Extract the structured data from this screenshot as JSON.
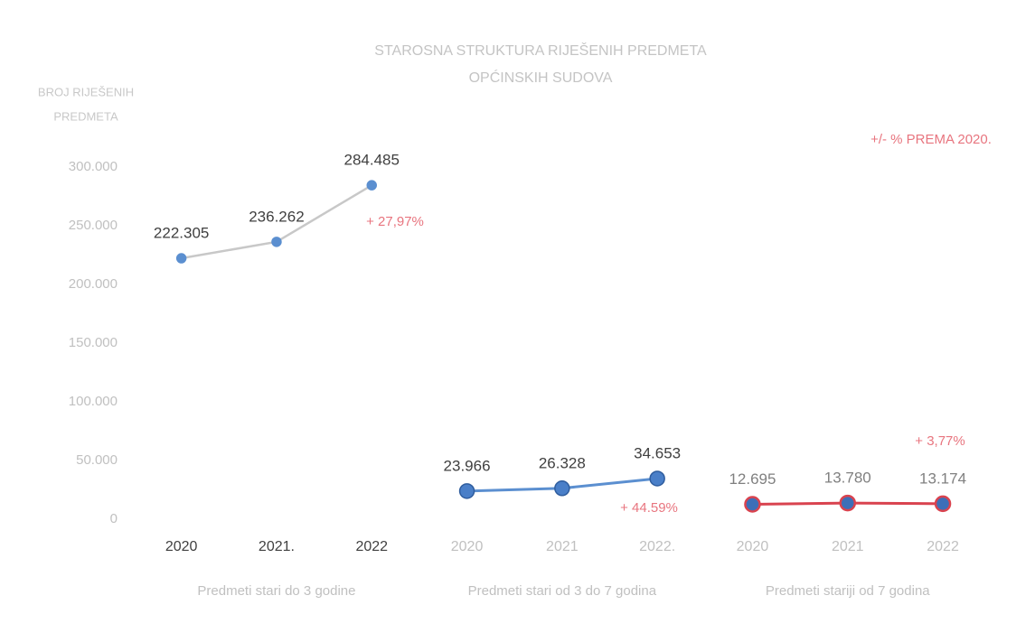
{
  "chart_data": {
    "type": "line",
    "title": [
      "STAROSNA STRUKTURA RIJEŠENIH PREDMETA",
      "OPĆINSKIH SUDOVA"
    ],
    "y_label": [
      "BROJ RIJEŠENIH",
      "PREDMETA"
    ],
    "categories": [
      "2020",
      "2021.",
      "2022",
      "2020",
      "2021",
      "2022.",
      "2020",
      "2021",
      "2022"
    ],
    "groups": [
      "Predmeti stari do 3 godine",
      "Predmeti stari od 3 do 7 godina",
      "Predmeti stariji od 7 godina"
    ],
    "series": [
      {
        "color": "#c8c8c8",
        "marker_color": "#5b8fd0",
        "marker_stroke": "#5b8fd0",
        "label_color": "#404040",
        "values": [
          222305,
          236262,
          284485,
          null,
          null,
          null,
          null,
          null,
          null
        ],
        "value_labels": [
          "222.305",
          "236.262",
          "284.485",
          null,
          null,
          null,
          null,
          null,
          null
        ]
      },
      {
        "color": "#5b8fd0",
        "marker_color": "#4a7fc8",
        "marker_stroke": "#2f5d9e",
        "label_color": "#404040",
        "values": [
          null,
          null,
          null,
          23966,
          26328,
          34653,
          null,
          null,
          null
        ],
        "value_labels": [
          null,
          null,
          null,
          "23.966",
          "26.328",
          "34.653",
          null,
          null,
          null
        ]
      },
      {
        "color": "#d9434f",
        "marker_color": "#3d6fb8",
        "marker_stroke": "#d9434f",
        "label_color": "#808080",
        "values": [
          null,
          null,
          null,
          null,
          null,
          null,
          12695,
          13780,
          13174
        ],
        "value_labels": [
          null,
          null,
          null,
          null,
          null,
          null,
          "12.695",
          "13.780",
          "13.174"
        ]
      }
    ],
    "annotations": [
      "+/- % PREMA 2020.",
      "+ 27,97%",
      "+ 44.59%",
      "+ 3,77%"
    ],
    "ylim": [
      0,
      300000
    ],
    "yticks": [
      0,
      {
        "value": 50000,
        "label": "50.000"
      },
      {
        "value": 100000,
        "label": "100.000"
      },
      {
        "value": 150000,
        "label": "150.000"
      },
      {
        "value": 200000,
        "label": "200.000"
      },
      {
        "value": 250000,
        "label": "250.000"
      },
      {
        "value": 300000,
        "label": "300.000"
      }
    ],
    "grid": false
  }
}
